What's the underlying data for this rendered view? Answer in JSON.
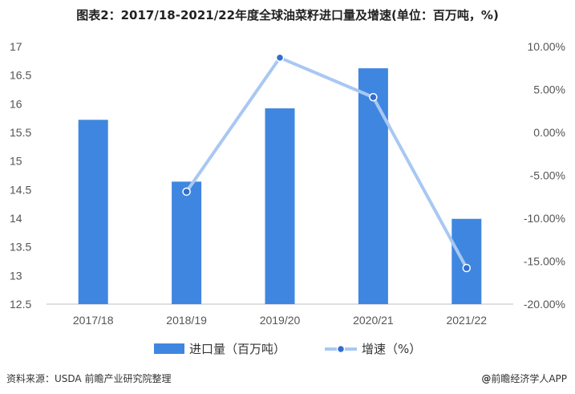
{
  "chart_data": {
    "type": "bar",
    "title": "图表2：2017/18-2021/22年度全球油菜籽进口量及增速(单位：百万吨，%)",
    "categories": [
      "2017/18",
      "2018/19",
      "2019/20",
      "2020/21",
      "2021/22"
    ],
    "series": [
      {
        "name": "进口量（百万吨）",
        "type": "bar",
        "axis": "left",
        "color": "#3f86e0",
        "values": [
          15.72,
          14.64,
          15.92,
          16.62,
          13.99
        ]
      },
      {
        "name": "增速（%）",
        "type": "line",
        "axis": "right",
        "color": "#a8c8f2",
        "marker_color": "#2f6fd0",
        "values": [
          null,
          -6.9,
          8.7,
          4.1,
          -15.8
        ]
      }
    ],
    "y_left": {
      "min": 12.5,
      "max": 17,
      "ticks": [
        "12.5",
        "13",
        "13.5",
        "14",
        "14.5",
        "15",
        "15.5",
        "16",
        "16.5",
        "17"
      ]
    },
    "y_right": {
      "min": -20,
      "max": 10,
      "ticks": [
        "-20.00%",
        "-15.00%",
        "-10.00%",
        "-5.00%",
        "0.00%",
        "5.00%",
        "10.00%"
      ]
    },
    "legend_position": "bottom",
    "grid": false
  },
  "footer": {
    "source": "资料来源：USDA 前瞻产业研究院整理",
    "brand_at": "@",
    "brand": "前瞻经济学人APP"
  }
}
